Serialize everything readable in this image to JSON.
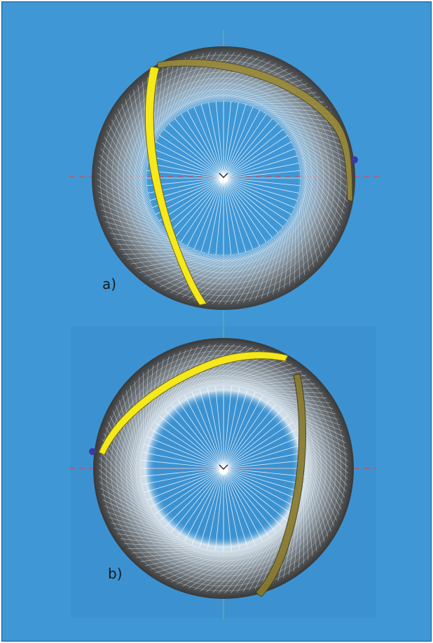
{
  "panels": [
    {
      "id": "a",
      "label": "a)"
    },
    {
      "id": "b",
      "label": "b)"
    }
  ],
  "colors": {
    "background": "#3f97d6",
    "sphere_rim": "#4a4a4a",
    "mesh": "#ffffff",
    "ribbon_front": "#f5e81b",
    "ribbon_back": "#7a6e2a",
    "axis_x": "#e04040",
    "axis_y": "#6cc06c",
    "marker": "#3a3aa0"
  },
  "icons": {
    "marker": "sphere-marker",
    "origin": "origin-glyph"
  }
}
